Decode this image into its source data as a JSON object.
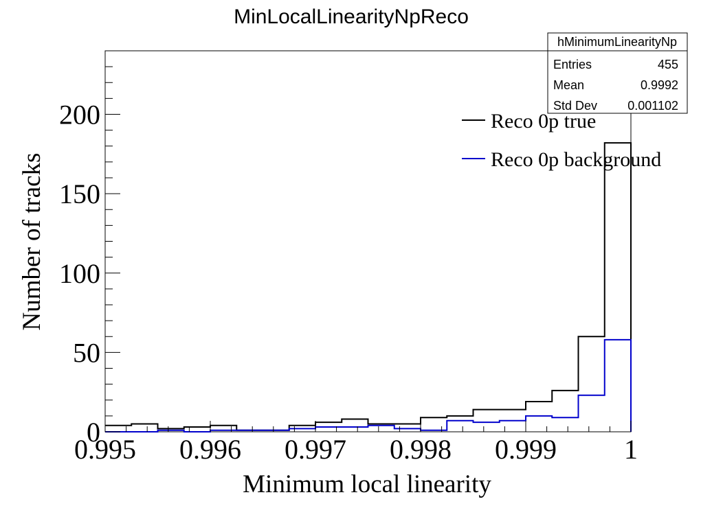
{
  "chart_data": {
    "type": "histogram",
    "title": "MinLocalLinearityNpReco",
    "xlabel": "Minimum local linearity",
    "ylabel": "Number of tracks",
    "xlim": [
      0.995,
      1.0
    ],
    "ylim": [
      0,
      240
    ],
    "x_ticks": [
      0.995,
      0.996,
      0.997,
      0.998,
      0.999,
      1.0
    ],
    "x_tick_labels": [
      "0.995",
      "0.996",
      "0.997",
      "0.998",
      "0.999",
      "1"
    ],
    "y_ticks": [
      0,
      50,
      100,
      150,
      200
    ],
    "y_tick_labels": [
      "0",
      "50",
      "100",
      "150",
      "200"
    ],
    "bin_edges": [
      0.995,
      0.99525,
      0.9955,
      0.99575,
      0.996,
      0.99625,
      0.9965,
      0.99675,
      0.997,
      0.99725,
      0.9975,
      0.99775,
      0.998,
      0.99825,
      0.9985,
      0.99875,
      0.999,
      0.99925,
      0.9995,
      0.99975,
      1.0
    ],
    "series": [
      {
        "name": "Reco 0p true",
        "color": "#000000",
        "values": [
          4,
          5,
          2,
          3,
          4,
          1,
          1,
          4,
          6,
          8,
          5,
          5,
          9,
          10,
          14,
          14,
          19,
          26,
          60,
          182
        ]
      },
      {
        "name": "Reco 0p background",
        "color": "#0000cc",
        "values": [
          0,
          0,
          1,
          0,
          1,
          1,
          1,
          2,
          3,
          3,
          4,
          2,
          1,
          7,
          6,
          7,
          10,
          9,
          23,
          58
        ]
      }
    ],
    "legend_position": "top-right",
    "stats_box": {
      "name": "hMinimumLinearityNp",
      "rows": [
        {
          "label": "Entries",
          "value": "455"
        },
        {
          "label": "Mean",
          "value": "0.9992"
        },
        {
          "label": "Std Dev",
          "value": "0.001102"
        }
      ]
    }
  }
}
